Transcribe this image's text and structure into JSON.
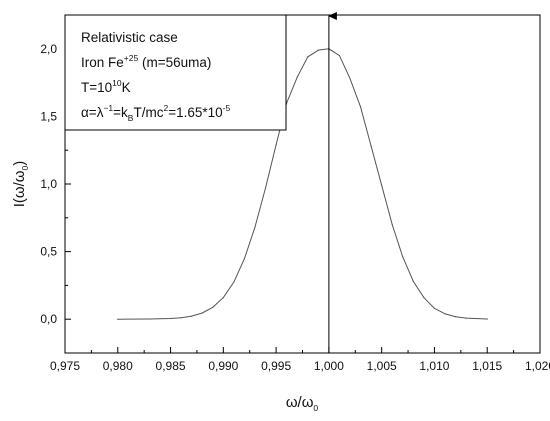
{
  "chart_data": {
    "type": "line",
    "xlabel": {
      "main": "ω/ω",
      "sub": "0"
    },
    "ylabel": {
      "pre": "I(ω/ω",
      "sub": "0",
      "post": ")"
    },
    "xlim": [
      0.975,
      1.02
    ],
    "ylim": [
      -0.25,
      2.25
    ],
    "x_ticks": [
      "0,975",
      "0,980",
      "0,985",
      "0,990",
      "0,995",
      "1,000",
      "1,005",
      "1,010",
      "1,015",
      "1,020"
    ],
    "x_tick_values": [
      0.975,
      0.98,
      0.985,
      0.99,
      0.995,
      1.0,
      1.005,
      1.01,
      1.015,
      1.02
    ],
    "y_ticks": [
      "0,0",
      "0,5",
      "1,0",
      "1,5",
      "2,0"
    ],
    "y_tick_values": [
      0,
      0.5,
      1.0,
      1.5,
      2.0
    ],
    "grid": false,
    "legend_box": {
      "position": "top-left",
      "line1": "Relativistic case",
      "line2": {
        "a": "Iron Fe",
        "sup": "+25",
        "b": " (m=56uma)"
      },
      "line3": {
        "a": "T=10",
        "sup": "10",
        "b": "K"
      },
      "line4": {
        "a": "α=λ",
        "sup1": "−1",
        "b": "=k",
        "sub": "B",
        "c": "T/mc",
        "sup2": "2",
        "d": "=1.65*10",
        "sup3": "-5"
      }
    },
    "annotations": {
      "vertical_arrow_at_x": 1.0
    },
    "series": [
      {
        "x": [
          0.98,
          0.983,
          0.985,
          0.986,
          0.987,
          0.988,
          0.989,
          0.99,
          0.991,
          0.992,
          0.993,
          0.994,
          0.995,
          0.996,
          0.997,
          0.998,
          0.999,
          1.0,
          1.001,
          1.002,
          1.003,
          1.004,
          1.005,
          1.006,
          1.007,
          1.008,
          1.009,
          1.01,
          1.011,
          1.012,
          1.013,
          1.015
        ],
        "values": [
          0.0,
          0.001,
          0.005,
          0.011,
          0.023,
          0.046,
          0.088,
          0.16,
          0.275,
          0.448,
          0.682,
          0.971,
          1.29,
          1.6,
          1.79,
          1.94,
          1.99,
          2.0,
          1.95,
          1.78,
          1.57,
          1.28,
          0.99,
          0.7,
          0.46,
          0.28,
          0.16,
          0.08,
          0.04,
          0.018,
          0.008,
          0.001
        ]
      }
    ]
  }
}
